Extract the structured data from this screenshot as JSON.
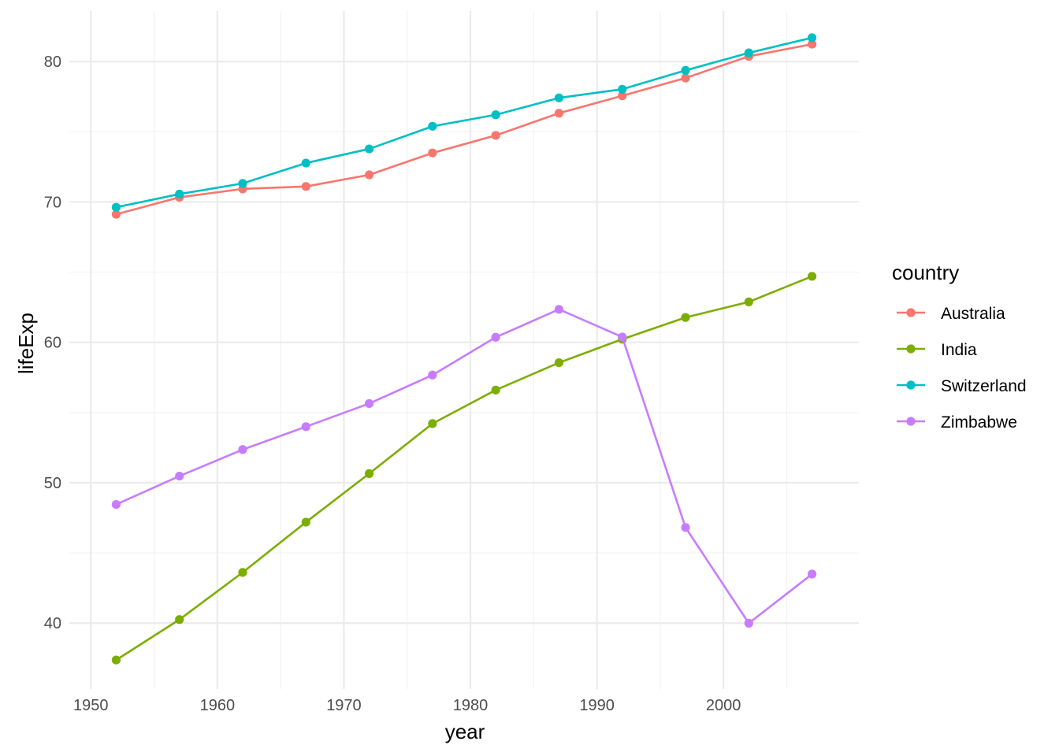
{
  "chart_data": {
    "type": "line",
    "xlabel": "year",
    "ylabel": "lifeExp",
    "xlim": [
      1948.3,
      2010.7
    ],
    "ylim": [
      35.3,
      83.6
    ],
    "x_ticks": [
      1950,
      1960,
      1970,
      1980,
      1990,
      2000
    ],
    "y_ticks": [
      40,
      50,
      60,
      70,
      80
    ],
    "grid": true,
    "legend": {
      "title": "country",
      "position": "right"
    },
    "x": [
      1952,
      1957,
      1962,
      1967,
      1972,
      1977,
      1982,
      1987,
      1992,
      1997,
      2002,
      2007
    ],
    "series": [
      {
        "name": "Australia",
        "color": "#F8766D",
        "values": [
          69.12,
          70.33,
          70.93,
          71.1,
          71.93,
          73.49,
          74.74,
          76.32,
          77.56,
          78.83,
          80.37,
          81.24
        ]
      },
      {
        "name": "India",
        "color": "#7CAE00",
        "values": [
          37.37,
          40.25,
          43.61,
          47.19,
          50.65,
          54.21,
          56.6,
          58.55,
          60.22,
          61.77,
          62.88,
          64.7
        ]
      },
      {
        "name": "Switzerland",
        "color": "#00BFC4",
        "values": [
          69.62,
          70.56,
          71.32,
          72.77,
          73.78,
          75.39,
          76.21,
          77.41,
          78.03,
          79.37,
          80.62,
          81.7
        ]
      },
      {
        "name": "Zimbabwe",
        "color": "#C77CFF",
        "values": [
          48.45,
          50.47,
          52.36,
          53.99,
          55.64,
          57.67,
          60.36,
          62.35,
          60.38,
          46.81,
          39.99,
          43.49
        ]
      }
    ]
  }
}
